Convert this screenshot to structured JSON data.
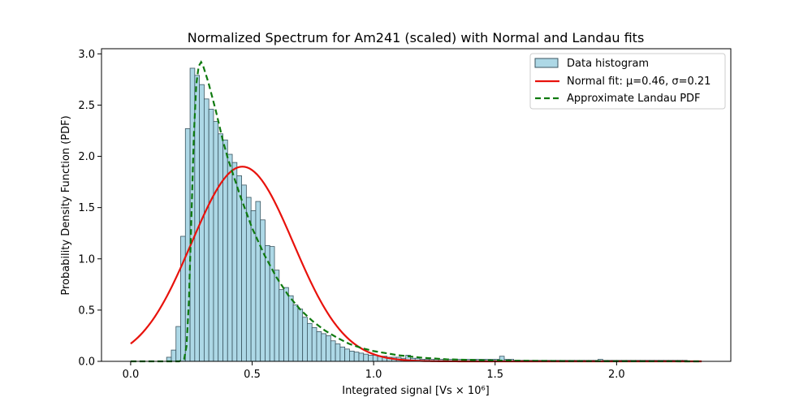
{
  "chart_data": {
    "type": "histogram",
    "title": "Normalized Spectrum for Am241 (scaled) with Normal and Landau fits",
    "xlabel": "Integrated signal [Vs × 10⁶]",
    "ylabel": "Probability Density Function (PDF)",
    "xlim": [
      -0.12,
      2.47
    ],
    "ylim": [
      0,
      3.05
    ],
    "xticks": [
      0.0,
      0.5,
      1.0,
      1.5,
      2.0
    ],
    "xtick_labels": [
      "0.0",
      "0.5",
      "1.0",
      "1.5",
      "2.0"
    ],
    "yticks": [
      0.0,
      0.5,
      1.0,
      1.5,
      2.0,
      2.5,
      3.0
    ],
    "ytick_labels": [
      "0.0",
      "0.5",
      "1.0",
      "1.5",
      "2.0",
      "2.5",
      "3.0"
    ],
    "grid": false,
    "legend_position": "top-right",
    "histogram": {
      "name": "Data histogram",
      "bin_start": 0.148,
      "bin_width": 0.0193,
      "values": [
        0.04,
        0.11,
        0.34,
        1.22,
        2.27,
        2.86,
        2.79,
        2.7,
        2.56,
        2.46,
        2.34,
        2.22,
        2.16,
        2.02,
        1.94,
        1.81,
        1.72,
        1.6,
        1.47,
        1.56,
        1.38,
        1.13,
        1.12,
        0.89,
        0.7,
        0.72,
        0.64,
        0.55,
        0.51,
        0.43,
        0.37,
        0.33,
        0.29,
        0.27,
        0.25,
        0.2,
        0.17,
        0.14,
        0.12,
        0.1,
        0.09,
        0.08,
        0.07,
        0.06,
        0.06,
        0.05,
        0.05,
        0.04,
        0.04,
        0.04,
        0.03,
        0.06,
        0.03,
        0.03,
        0.02,
        0.02,
        0.02,
        0.02,
        0.02,
        0.02,
        0.02,
        0.02,
        0.02,
        0.02,
        0.02,
        0.02,
        0.02,
        0.02,
        0.02,
        0.02,
        0.02,
        0.05,
        0.02,
        0.02,
        0.01,
        0.01,
        0.01,
        0.01,
        0.01,
        0.01,
        0.01,
        0.01,
        0.01,
        0.01,
        0.01,
        0.01,
        0.01,
        0.01,
        0.01,
        0.01,
        0.01,
        0.01,
        0.02,
        0.01,
        0.01,
        0.01,
        0.01,
        0.01,
        0.01,
        0.01,
        0.01,
        0.01,
        0.01,
        0.01,
        0.01,
        0.01,
        0.01,
        0.01,
        0.01,
        0.01,
        0.01
      ],
      "color": "#add8e6",
      "edgecolor": "#3a5560"
    },
    "normal_fit": {
      "name": "Normal fit: μ=0.46, σ=0.21",
      "mu": 0.46,
      "sigma": 0.21,
      "color": "#e8120c"
    },
    "landau_fit": {
      "name": "Approximate Landau PDF",
      "color": "#0f7a0f",
      "x": [
        0.0,
        0.2,
        0.22,
        0.23,
        0.24,
        0.25,
        0.26,
        0.27,
        0.28,
        0.29,
        0.3,
        0.32,
        0.35,
        0.38,
        0.4,
        0.45,
        0.5,
        0.55,
        0.6,
        0.65,
        0.7,
        0.75,
        0.8,
        0.85,
        0.9,
        0.95,
        1.0,
        1.1,
        1.2,
        1.3,
        1.5,
        1.8,
        2.0,
        2.35
      ],
      "y": [
        0.0,
        0.0,
        0.02,
        0.15,
        0.6,
        1.4,
        2.2,
        2.7,
        2.88,
        2.92,
        2.87,
        2.72,
        2.45,
        2.15,
        1.98,
        1.62,
        1.3,
        1.04,
        0.82,
        0.64,
        0.5,
        0.39,
        0.3,
        0.23,
        0.17,
        0.13,
        0.1,
        0.06,
        0.035,
        0.02,
        0.008,
        0.002,
        0.001,
        0.0
      ]
    }
  }
}
